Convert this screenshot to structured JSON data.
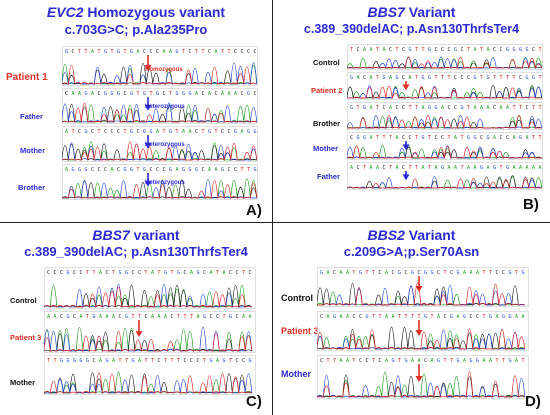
{
  "panelA": {
    "title_gene": "EVC2",
    "title_rest": " Homozygous variant",
    "subtitle": "c.703G>C; p.Ala235Pro",
    "letter": "A)",
    "rows": [
      {
        "label": "Patient 1",
        "color": "red",
        "annotation": "Homozygous",
        "ann_color": "red",
        "arrow": "red"
      },
      {
        "label": "Father",
        "color": "blue",
        "annotation": "Heterozygous",
        "ann_color": "blue",
        "arrow": "blue"
      },
      {
        "label": "Mother",
        "color": "blue",
        "annotation": "Heterozygous",
        "ann_color": "blue",
        "arrow": "blue"
      },
      {
        "label": "Brother",
        "color": "blue",
        "annotation": "Heterozygous",
        "ann_color": "blue",
        "arrow": "blue"
      }
    ]
  },
  "panelB": {
    "title_gene": "BBS7",
    "title_rest": " Variant",
    "subtitle": "c.389_390delAC; p.Asn130ThrfsTer4",
    "letter": "B)",
    "rows": [
      {
        "label": "Control",
        "color": "black",
        "arrow": "none"
      },
      {
        "label": "Patient 2",
        "color": "red",
        "arrow": "red"
      },
      {
        "label": "Brother",
        "color": "black",
        "arrow": "none"
      },
      {
        "label": "Mother",
        "color": "blue",
        "arrow": "blue"
      },
      {
        "label": "Father",
        "color": "blue",
        "arrow": "blue"
      }
    ]
  },
  "panelC": {
    "title_gene": "BBS7",
    "title_rest": " variant",
    "subtitle": "c.389_390delAC; p.Asn130ThrfsTer4",
    "letter": "C)",
    "rows": [
      {
        "label": "Control",
        "color": "black",
        "arrow": "none"
      },
      {
        "label": "Patient 3",
        "color": "red",
        "arrow": "red"
      },
      {
        "label": "Mother",
        "color": "black",
        "arrow": "none"
      }
    ]
  },
  "panelD": {
    "title_gene": "BBS2",
    "title_rest": " Variant",
    "subtitle": "c.209G>A;p.Ser70Asn",
    "letter": "D)",
    "rows": [
      {
        "label": "Control",
        "color": "black",
        "arrow": "red"
      },
      {
        "label": "Patient 3",
        "color": "red",
        "arrow": "red"
      },
      {
        "label": "Mother",
        "color": "blue",
        "arrow": "red"
      }
    ]
  },
  "colors": {
    "title": "#2b2bd6",
    "patient": "#e03025",
    "relative": "#2b2bd6",
    "trace_A": "#1a9a1a",
    "trace_C": "#1a1a1a",
    "trace_G": "#2244dd",
    "trace_T": "#dd2222"
  }
}
